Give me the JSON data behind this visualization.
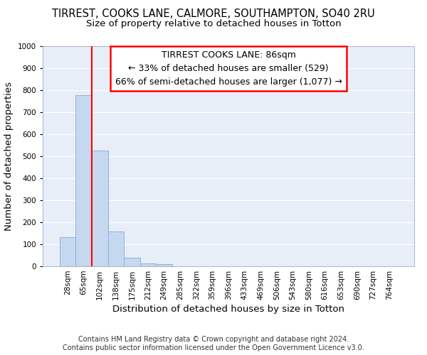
{
  "title": "TIRREST, COOKS LANE, CALMORE, SOUTHAMPTON, SO40 2RU",
  "subtitle": "Size of property relative to detached houses in Totton",
  "xlabel": "Distribution of detached houses by size in Totton",
  "ylabel": "Number of detached properties",
  "bar_color": "#c5d8ef",
  "bar_edge_color": "#89b4d9",
  "background_color": "#e8eef8",
  "grid_color": "#ffffff",
  "categories": [
    "28sqm",
    "65sqm",
    "102sqm",
    "138sqm",
    "175sqm",
    "212sqm",
    "249sqm",
    "285sqm",
    "322sqm",
    "359sqm",
    "396sqm",
    "433sqm",
    "469sqm",
    "506sqm",
    "543sqm",
    "580sqm",
    "616sqm",
    "653sqm",
    "690sqm",
    "727sqm",
    "764sqm"
  ],
  "values": [
    133,
    778,
    525,
    158,
    40,
    13,
    10,
    0,
    0,
    0,
    0,
    0,
    0,
    0,
    0,
    0,
    0,
    0,
    0,
    0,
    0
  ],
  "ylim": [
    0,
    1000
  ],
  "yticks": [
    0,
    100,
    200,
    300,
    400,
    500,
    600,
    700,
    800,
    900,
    1000
  ],
  "property_label": "TIRREST COOKS LANE: 86sqm",
  "pct_smaller": 33,
  "count_smaller": 529,
  "pct_larger": 66,
  "count_larger": 1077,
  "vline_position": 1.5,
  "footer": "Contains HM Land Registry data © Crown copyright and database right 2024.\nContains public sector information licensed under the Open Government Licence v3.0.",
  "title_fontsize": 10.5,
  "subtitle_fontsize": 9.5,
  "axis_label_fontsize": 9.5,
  "tick_fontsize": 7.5,
  "annotation_fontsize": 9,
  "footer_fontsize": 7
}
